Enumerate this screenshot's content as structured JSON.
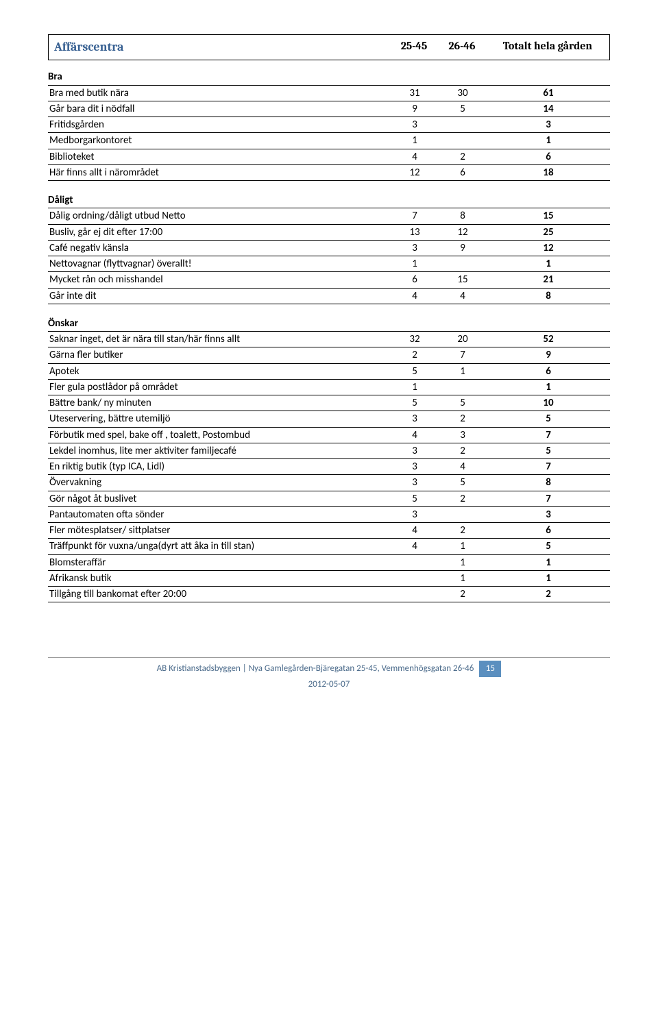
{
  "header": {
    "topic": "Affärscentra",
    "col1": "25-45",
    "col2": "26-46",
    "col3": "Totalt hela gården"
  },
  "sections": [
    {
      "label": "Bra",
      "rows": [
        {
          "label": "Bra med butik nära",
          "a": "31",
          "b": "30",
          "t": "61"
        },
        {
          "label": "Går bara dit i nödfall",
          "a": "9",
          "b": "5",
          "t": "14"
        },
        {
          "label": "Fritidsgården",
          "a": "3",
          "b": "",
          "t": "3"
        },
        {
          "label": "Medborgarkontoret",
          "a": "1",
          "b": "",
          "t": "1"
        },
        {
          "label": "Biblioteket",
          "a": "4",
          "b": "2",
          "t": "6"
        },
        {
          "label": "Här finns allt i närområdet",
          "a": "12",
          "b": "6",
          "t": "18"
        }
      ]
    },
    {
      "label": "Dåligt",
      "rows": [
        {
          "label": "Dålig ordning/dåligt utbud Netto",
          "a": "7",
          "b": "8",
          "t": "15"
        },
        {
          "label": "Busliv, går ej dit efter 17:00",
          "a": "13",
          "b": "12",
          "t": "25"
        },
        {
          "label": "Café negativ känsla",
          "a": "3",
          "b": "9",
          "t": "12"
        },
        {
          "label": "Nettovagnar (flyttvagnar) överallt!",
          "a": "1",
          "b": "",
          "t": "1"
        },
        {
          "label": "Mycket rån och misshandel",
          "a": "6",
          "b": "15",
          "t": "21"
        },
        {
          "label": "Går inte dit",
          "a": "4",
          "b": "4",
          "t": "8"
        }
      ]
    },
    {
      "label": "Önskar",
      "rows": [
        {
          "label": "Saknar inget, det är nära till stan/här finns allt",
          "a": "32",
          "b": "20",
          "t": "52"
        },
        {
          "label": "Gärna fler butiker",
          "a": "2",
          "b": "7",
          "t": "9"
        },
        {
          "label": "Apotek",
          "a": "5",
          "b": "1",
          "t": "6"
        },
        {
          "label": "Fler gula postlådor på området",
          "a": "1",
          "b": "",
          "t": "1"
        },
        {
          "label": "Bättre bank/ ny minuten",
          "a": "5",
          "b": "5",
          "t": "10"
        },
        {
          "label": "Uteservering, bättre utemiljö",
          "a": "3",
          "b": "2",
          "t": "5"
        },
        {
          "label": "Förbutik med spel, bake off , toalett, Postombud",
          "a": "4",
          "b": "3",
          "t": "7"
        },
        {
          "label": "Lekdel inomhus, lite mer aktiviter familjecafé",
          "a": "3",
          "b": "2",
          "t": "5"
        },
        {
          "label": "En riktig butik (typ ICA, Lidl)",
          "a": "3",
          "b": "4",
          "t": "7"
        },
        {
          "label": "Övervakning",
          "a": "3",
          "b": "5",
          "t": "8"
        },
        {
          "label": "Gör något åt buslivet",
          "a": "5",
          "b": "2",
          "t": "7"
        },
        {
          "label": "Pantautomaten ofta sönder",
          "a": "3",
          "b": "",
          "t": "3"
        },
        {
          "label": "Fler mötesplatser/ sittplatser",
          "a": "4",
          "b": "2",
          "t": "6"
        },
        {
          "label": "Träffpunkt för vuxna/unga(dyrt att åka in till stan)",
          "a": "4",
          "b": "1",
          "t": "5"
        },
        {
          "label": "Blomsteraffär",
          "a": "",
          "b": "1",
          "t": "1"
        },
        {
          "label": "Afrikansk butik",
          "a": "",
          "b": "1",
          "t": "1"
        },
        {
          "label": "Tillgång till bankomat efter 20:00",
          "a": "",
          "b": "2",
          "t": "2"
        }
      ]
    }
  ],
  "footer": {
    "text": "AB Kristianstadsbyggen | Nya Gamlegården-Bjäregatan 25-45, Vemmenhögsgatan 26-46",
    "page": "15",
    "date": "2012-05-07"
  }
}
